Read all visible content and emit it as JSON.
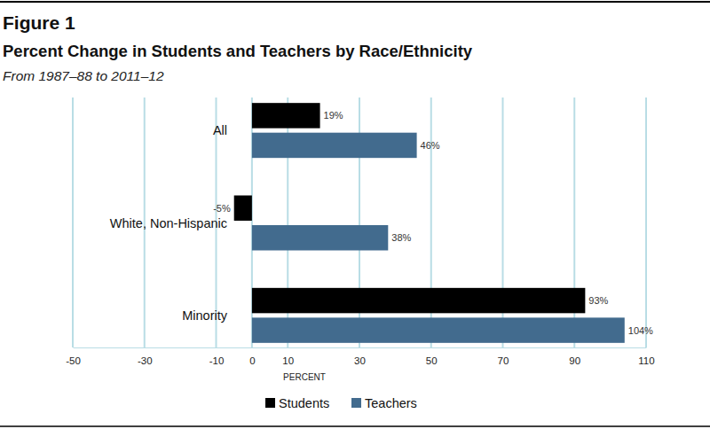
{
  "chart_data": {
    "type": "bar",
    "orientation": "horizontal",
    "figure_label": "Figure 1",
    "title": "Percent Change in Students and Teachers by Race/Ethnicity",
    "subtitle": "From 1987–88 to 2011–12",
    "categories": [
      "All",
      "White, Non-Hispanic",
      "Minority"
    ],
    "series": [
      {
        "name": "Students",
        "color": "#000000",
        "values": [
          19,
          -5,
          93
        ],
        "value_labels": [
          "19%",
          "-5%",
          "93%"
        ]
      },
      {
        "name": "Teachers",
        "color": "#426b8e",
        "values": [
          46,
          38,
          104
        ],
        "value_labels": [
          "46%",
          "38%",
          "104%"
        ]
      }
    ],
    "xlabel": "PERCENT",
    "xlim": [
      -50,
      110
    ],
    "xticks": [
      -50,
      -30,
      -10,
      0,
      10,
      30,
      50,
      70,
      90,
      110
    ],
    "grid": true,
    "data_labels": true,
    "legend": "bottom"
  }
}
